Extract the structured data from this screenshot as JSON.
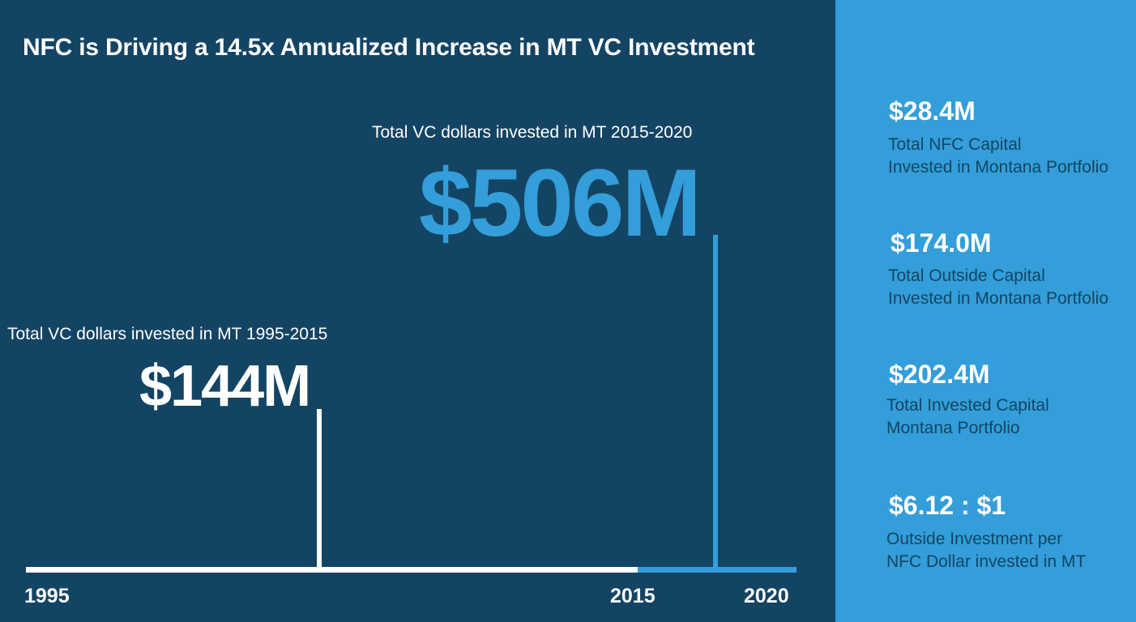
{
  "title": "NFC is Driving a 14.5x Annualized Increase in MT VC Investment",
  "colors": {
    "background": "#144464",
    "accent": "#339ed9",
    "panel_text": "#134564",
    "white": "#ffffff"
  },
  "timeline": {
    "labels": {
      "start": "1995",
      "middle": "2015",
      "end": "2020"
    },
    "period_1": {
      "caption": "Total VC dollars invested in MT 1995-2015",
      "value": "$144M"
    },
    "period_2": {
      "caption": "Total VC dollars invested in MT 2015-2020",
      "value": "$506M"
    }
  },
  "stats": [
    {
      "value": "$28.4M",
      "line1": "Total NFC Capital",
      "line2": "Invested in Montana Portfolio"
    },
    {
      "value": "$174.0M",
      "line1": "Total Outside Capital",
      "line2": "Invested in Montana Portfolio"
    },
    {
      "value": "$202.4M",
      "line1": "Total Invested Capital",
      "line2": "Montana Portfolio"
    },
    {
      "value": "$6.12 : $1",
      "line1": "Outside Investment per",
      "line2": "NFC Dollar invested in MT"
    }
  ]
}
